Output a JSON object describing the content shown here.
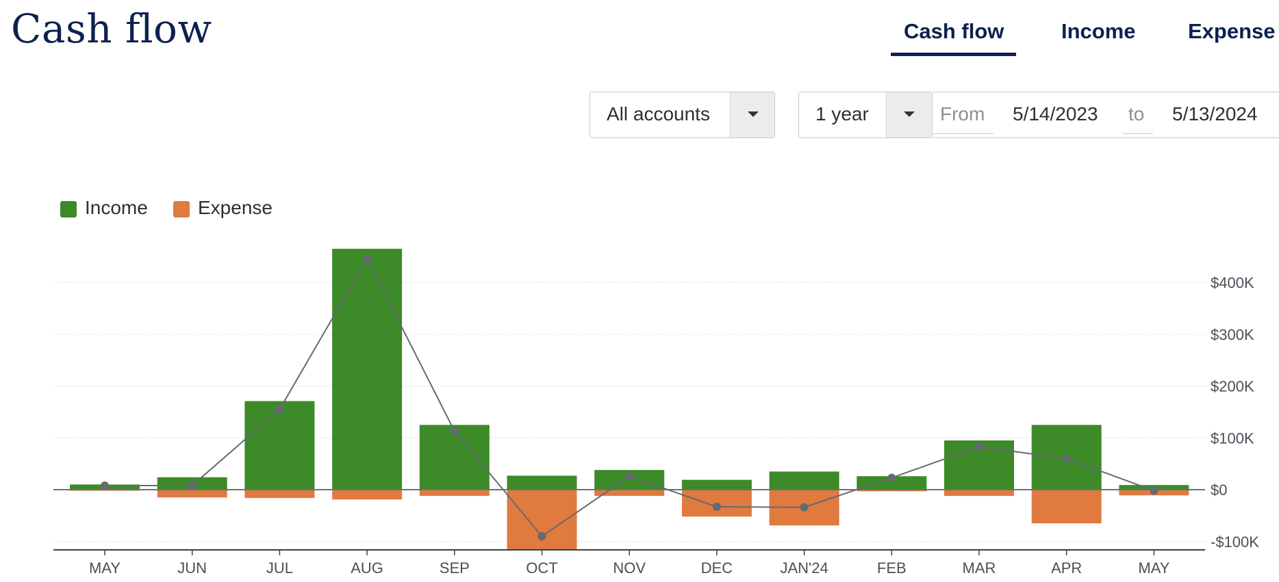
{
  "page": {
    "title": "Cash flow"
  },
  "tabs": [
    {
      "label": "Cash flow",
      "active": true
    },
    {
      "label": "Income",
      "active": false
    },
    {
      "label": "Expense",
      "active": false
    }
  ],
  "filters": {
    "accounts": {
      "value": "All accounts"
    },
    "range": {
      "value": "1 year"
    },
    "from_label": "From",
    "from_value": "5/14/2023",
    "to_label": "to",
    "to_value": "5/13/2024"
  },
  "colors": {
    "income": "#3c8a28",
    "expense": "#e07a3f",
    "net_line": "#666a72",
    "title": "#0d2150"
  },
  "chart_data": {
    "type": "bar",
    "stacked_diverging": true,
    "legend": "top-left",
    "categories": [
      "MAY",
      "JUN",
      "JUL",
      "AUG",
      "SEP",
      "OCT",
      "NOV",
      "DEC",
      "JAN'24",
      "FEB",
      "MAR",
      "APR",
      "MAY"
    ],
    "series": [
      {
        "name": "Income",
        "values": [
          10,
          24,
          171,
          465,
          125,
          27,
          38,
          19,
          35,
          26,
          95,
          125,
          9
        ]
      },
      {
        "name": "Expense",
        "values": [
          -2,
          -15,
          -16,
          -19,
          -12,
          -117,
          -12,
          -52,
          -69,
          -3,
          -12,
          -65,
          -11
        ]
      }
    ],
    "net": [
      8,
      8,
      155,
      446,
      113,
      -90,
      26,
      -33,
      -34,
      23,
      83,
      60,
      -2
    ],
    "y_ticks": [
      -100,
      0,
      100,
      200,
      300,
      400
    ],
    "y_tick_labels": [
      "-$100K",
      "$0",
      "$100K",
      "$200K",
      "$300K",
      "$400K"
    ],
    "ylim": [
      -115,
      480
    ],
    "y_unit": "thousands USD",
    "y_axis_position": "right",
    "grid": true
  }
}
